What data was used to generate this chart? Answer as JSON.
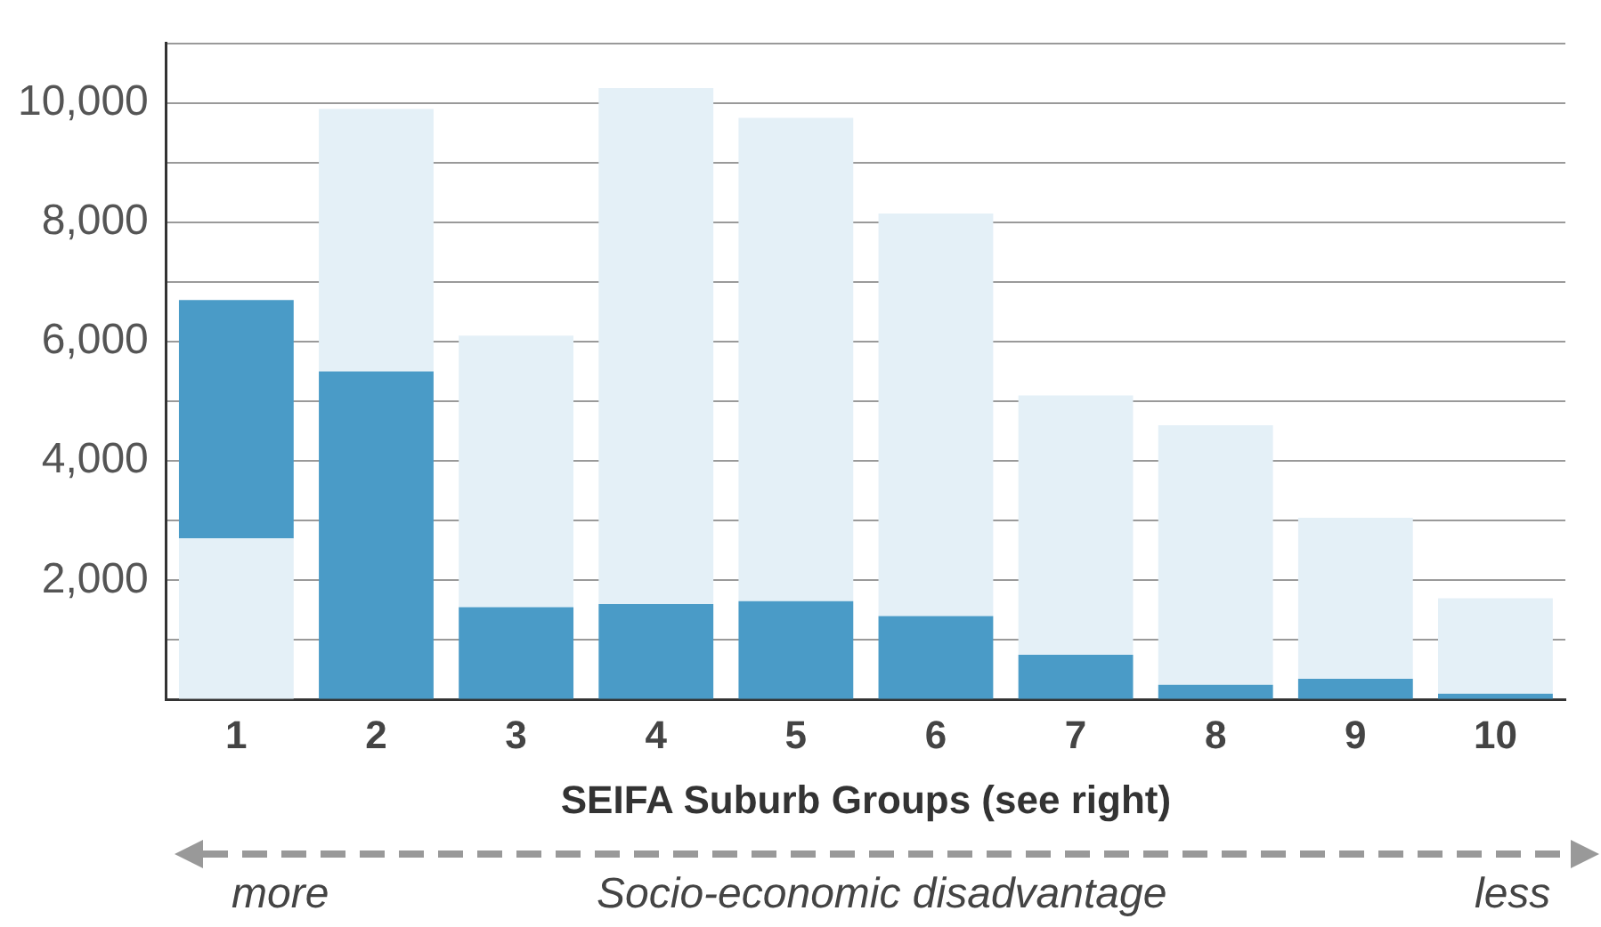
{
  "chart_data": {
    "type": "bar",
    "stacked": true,
    "xlabel": "SEIFA Suburb Groups (see right)",
    "categories": [
      "1",
      "2",
      "3",
      "4",
      "5",
      "6",
      "7",
      "8",
      "9",
      "10"
    ],
    "series": [
      {
        "color": "#e4f0f7",
        "values": [
          2700,
          null,
          null,
          null,
          null,
          null,
          null,
          null,
          null,
          null
        ]
      },
      {
        "color": "#4a9bc7",
        "values": [
          4000,
          5500,
          1550,
          1600,
          1650,
          1400,
          750,
          250,
          350,
          100
        ]
      },
      {
        "color": "#e4f0f7",
        "values": [
          null,
          4400,
          4550,
          8650,
          8100,
          6750,
          4350,
          4350,
          2700,
          1600
        ]
      }
    ],
    "ylim": [
      0,
      11000
    ],
    "yticks": [
      {
        "value": 0,
        "label": null
      },
      {
        "value": 1000,
        "label": null
      },
      {
        "value": 2000,
        "label": "2,000"
      },
      {
        "value": 3000,
        "label": null
      },
      {
        "value": 4000,
        "label": "4,000"
      },
      {
        "value": 5000,
        "label": null
      },
      {
        "value": 6000,
        "label": "6,000"
      },
      {
        "value": 7000,
        "label": null
      },
      {
        "value": 8000,
        "label": "8,000"
      },
      {
        "value": 9000,
        "label": null
      },
      {
        "value": 10000,
        "label": "10,000"
      },
      {
        "value": 11000,
        "label": null
      }
    ],
    "grid": "y",
    "legend": false,
    "annotations": [
      "more",
      "Socio-economic disadvantage",
      "less"
    ]
  }
}
